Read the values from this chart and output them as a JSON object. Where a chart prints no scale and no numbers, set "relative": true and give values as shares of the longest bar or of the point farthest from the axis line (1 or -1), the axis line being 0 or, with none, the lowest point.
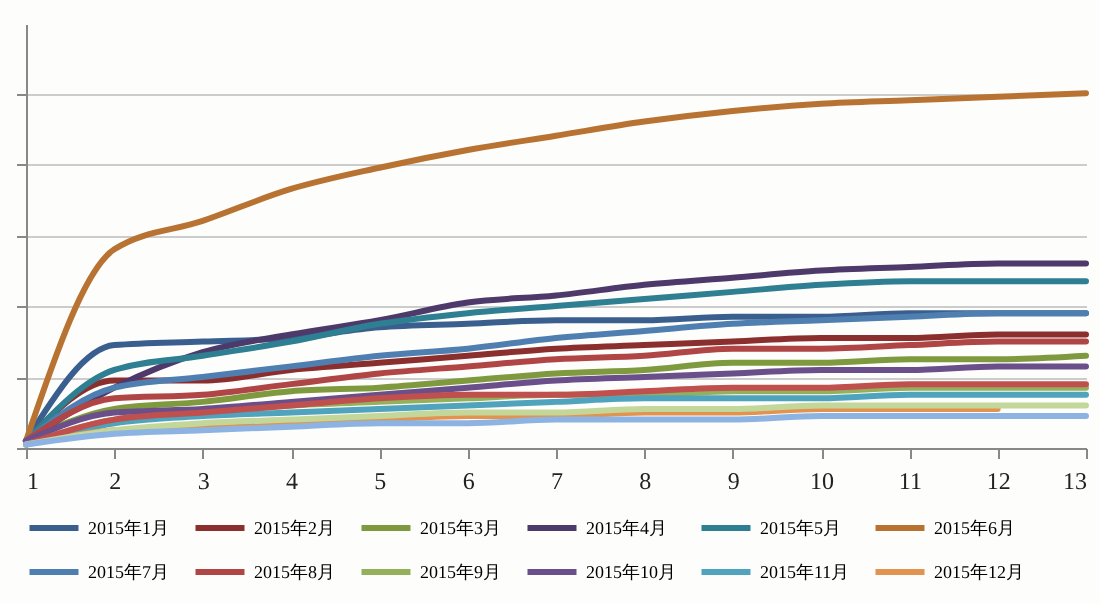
{
  "chart_data": {
    "type": "line",
    "relative": true,
    "xlim": [
      1,
      13
    ],
    "xticks": [
      1,
      2,
      3,
      4,
      5,
      6,
      7,
      8,
      9,
      10,
      11,
      12,
      13
    ],
    "x": [
      1,
      2,
      3,
      4,
      5,
      6,
      7,
      8,
      9,
      10,
      11,
      12,
      13
    ],
    "grid": "y",
    "legend": "bottom",
    "series": [
      {
        "name": "2015年1月",
        "color": "#3a5f8f",
        "values": [
          0.02,
          0.29,
          0.3,
          0.31,
          0.34,
          0.35,
          0.36,
          0.36,
          0.37,
          0.37,
          0.38,
          0.38,
          0.38
        ]
      },
      {
        "name": "2015年2月",
        "color": "#8b2e2e",
        "values": [
          0.02,
          0.19,
          0.19,
          0.22,
          0.24,
          0.26,
          0.28,
          0.29,
          0.3,
          0.31,
          0.31,
          0.32,
          0.32
        ]
      },
      {
        "name": "2015年3月",
        "color": "#7f9a3e",
        "values": [
          0.02,
          0.11,
          0.13,
          0.16,
          0.17,
          0.19,
          0.21,
          0.22,
          0.24,
          0.24,
          0.25,
          0.25,
          0.26
        ]
      },
      {
        "name": "2015年4月",
        "color": "#4d3a6b",
        "values": [
          0.02,
          0.17,
          0.27,
          0.32,
          0.36,
          0.41,
          0.43,
          0.46,
          0.48,
          0.5,
          0.51,
          0.52,
          0.52
        ]
      },
      {
        "name": "2015年5月",
        "color": "#2e7f91",
        "values": [
          0.02,
          0.22,
          0.26,
          0.3,
          0.35,
          0.38,
          0.4,
          0.42,
          0.44,
          0.46,
          0.47,
          0.47,
          0.47
        ]
      },
      {
        "name": "2015年6月",
        "color": "#b87333",
        "values": [
          0.02,
          0.56,
          0.64,
          0.73,
          0.79,
          0.84,
          0.88,
          0.92,
          0.95,
          0.97,
          0.98,
          0.99,
          1
        ]
      },
      {
        "name": "2015年7月",
        "color": "#4f7fb0",
        "values": [
          0.02,
          0.17,
          0.2,
          0.23,
          0.26,
          0.28,
          0.31,
          0.33,
          0.35,
          0.36,
          0.37,
          0.38,
          0.38
        ]
      },
      {
        "name": "2015年8月",
        "color": "#b04545",
        "values": [
          0.02,
          0.14,
          0.15,
          0.18,
          0.21,
          0.23,
          0.25,
          0.26,
          0.28,
          0.28,
          0.29,
          0.3,
          0.3
        ]
      },
      {
        "name": "2015年9月",
        "color": "#94b05a",
        "values": [
          0.01,
          0.08,
          0.1,
          0.12,
          0.13,
          0.14,
          0.15,
          0.15,
          0.16,
          0.16,
          0.17,
          0.17,
          0.17
        ]
      },
      {
        "name": "2015年10月",
        "color": "#6a4f8a",
        "values": [
          0.02,
          0.1,
          0.11,
          0.13,
          0.15,
          0.17,
          0.19,
          0.2,
          0.21,
          0.22,
          0.22,
          0.23,
          0.23
        ]
      },
      {
        "name": "2015年11月",
        "color": "#4fa3bd",
        "values": [
          0.01,
          0.07,
          0.09,
          0.1,
          0.11,
          0.12,
          0.13,
          0.14,
          0.14,
          0.14,
          0.15,
          0.15,
          0.15
        ]
      },
      {
        "name": "2015年12月",
        "color": "#e39350",
        "values": [
          0.01,
          0.05,
          0.06,
          0.07,
          0.08,
          0.09,
          0.09,
          0.1,
          0.1,
          0.11,
          0.11,
          0.11,
          null
        ]
      },
      {
        "color": "#c0504d",
        "values": [
          0.01,
          0.08,
          0.1,
          0.12,
          0.14,
          0.15,
          0.15,
          0.16,
          0.17,
          0.17,
          0.18,
          0.18,
          0.18
        ]
      },
      {
        "color": "#c4d79b",
        "values": [
          0.01,
          0.05,
          0.07,
          0.08,
          0.09,
          0.1,
          0.1,
          0.11,
          0.11,
          0.12,
          0.12,
          0.12,
          0.12
        ]
      },
      {
        "color": "#8db3e2",
        "values": [
          0.01,
          0.04,
          0.05,
          0.06,
          0.07,
          0.07,
          0.08,
          0.08,
          0.08,
          0.09,
          0.09,
          0.09,
          0.09
        ]
      }
    ]
  }
}
